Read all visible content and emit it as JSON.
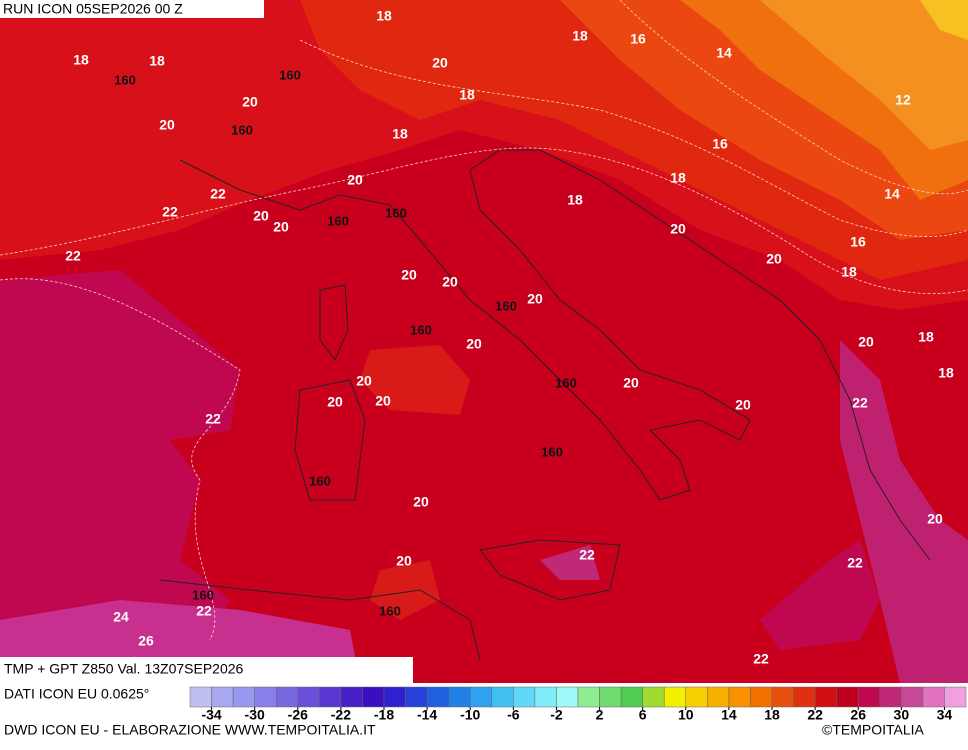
{
  "header": {
    "run": "RUN ICON 05SEP2026 00 Z",
    "title": "TMP + GPT Z850 Val. 13Z07SEP2026"
  },
  "footer": {
    "data_source": "DATI ICON EU 0.0625°",
    "credits": "DWD ICON EU - ELABORAZIONE WWW.TEMPOITALIA.IT",
    "copyright": "©TEMPOITALIA"
  },
  "temperature_labels": [
    18,
    18,
    16,
    14,
    18,
    18,
    20,
    18,
    12,
    20,
    20,
    18,
    16,
    18,
    20,
    22,
    14,
    22,
    18,
    20,
    20,
    20,
    16,
    22,
    20,
    20,
    20,
    18,
    20,
    18,
    20,
    20,
    18,
    20,
    20,
    20,
    20,
    20,
    22,
    22,
    20,
    20,
    22,
    20,
    22,
    22,
    24,
    26,
    22
  ],
  "height_labels": [
    160,
    160,
    160,
    160,
    160,
    160,
    160,
    160,
    160,
    160,
    160,
    160
  ],
  "colorbar": {
    "range": [
      -36,
      36
    ],
    "ticks": [
      -34,
      -30,
      -26,
      -22,
      -18,
      -14,
      -10,
      -6,
      -2,
      2,
      6,
      10,
      14,
      18,
      22,
      26,
      30,
      34
    ],
    "colors": [
      "#c0c0f0",
      "#a8a8f0",
      "#9898f0",
      "#8880e8",
      "#7868e0",
      "#6850d8",
      "#5838d0",
      "#4820c8",
      "#3810c0",
      "#3020d0",
      "#2840d8",
      "#2060e0",
      "#2080e8",
      "#30a0f0",
      "#40c0f0",
      "#60d8f8",
      "#80ecf8",
      "#a0f8f8",
      "#90ec90",
      "#70dc70",
      "#50cc50",
      "#a0dc30",
      "#f0f000",
      "#f8d000",
      "#f8b000",
      "#f89000",
      "#f07000",
      "#e85010",
      "#e03010",
      "#d01010",
      "#c00020",
      "#c00850",
      "#c02878",
      "#c84898",
      "#e070c0",
      "#f0a0e0"
    ]
  }
}
